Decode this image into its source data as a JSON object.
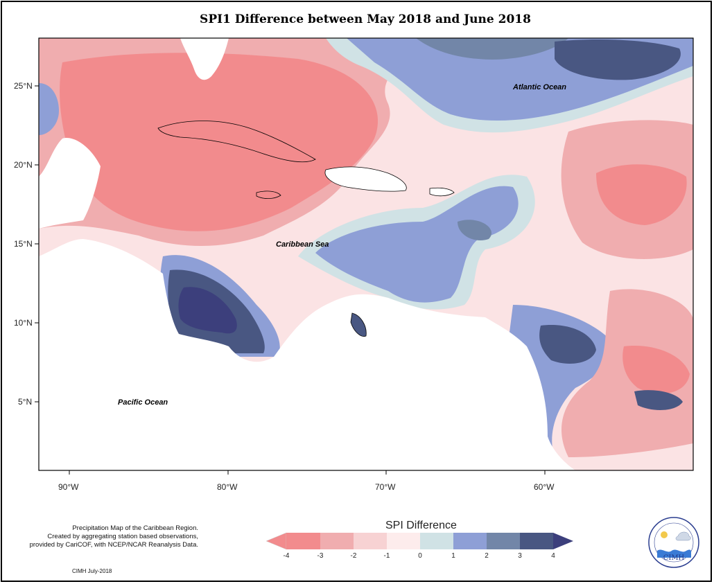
{
  "map": {
    "title": "SPI1 Difference between May 2018 and June 2018",
    "lat_ticks": [
      "25°N",
      "20°N",
      "15°N",
      "10°N",
      "5°N"
    ],
    "lon_ticks": [
      "90°W",
      "80°W",
      "70°W",
      "60°W"
    ],
    "labels": {
      "atlantic": "Atlantic Ocean",
      "caribbean": "Caribbean Sea",
      "pacific": "Pacific Ocean"
    }
  },
  "legend": {
    "title": "SPI Difference",
    "ticks": [
      "-4",
      "-3",
      "-2",
      "-1",
      "0",
      "1",
      "2",
      "3",
      "4"
    ],
    "colors": [
      "#f28b8d",
      "#f0adaf",
      "#f7d2d3",
      "#fdecec",
      "#d0e2e5",
      "#8e9fd6",
      "#7286a8",
      "#495782",
      "#3c3f7c"
    ]
  },
  "footer": {
    "note_line1": "Precipitation Map of the Caribbean Region.",
    "note_line2": "Created by aggregating station based observations,",
    "note_line3": "provided by CariCOF, with NCEP/NCAR Reanalysis Data.",
    "credit": "CIMH July-2018",
    "logo_text": "CIMH"
  }
}
